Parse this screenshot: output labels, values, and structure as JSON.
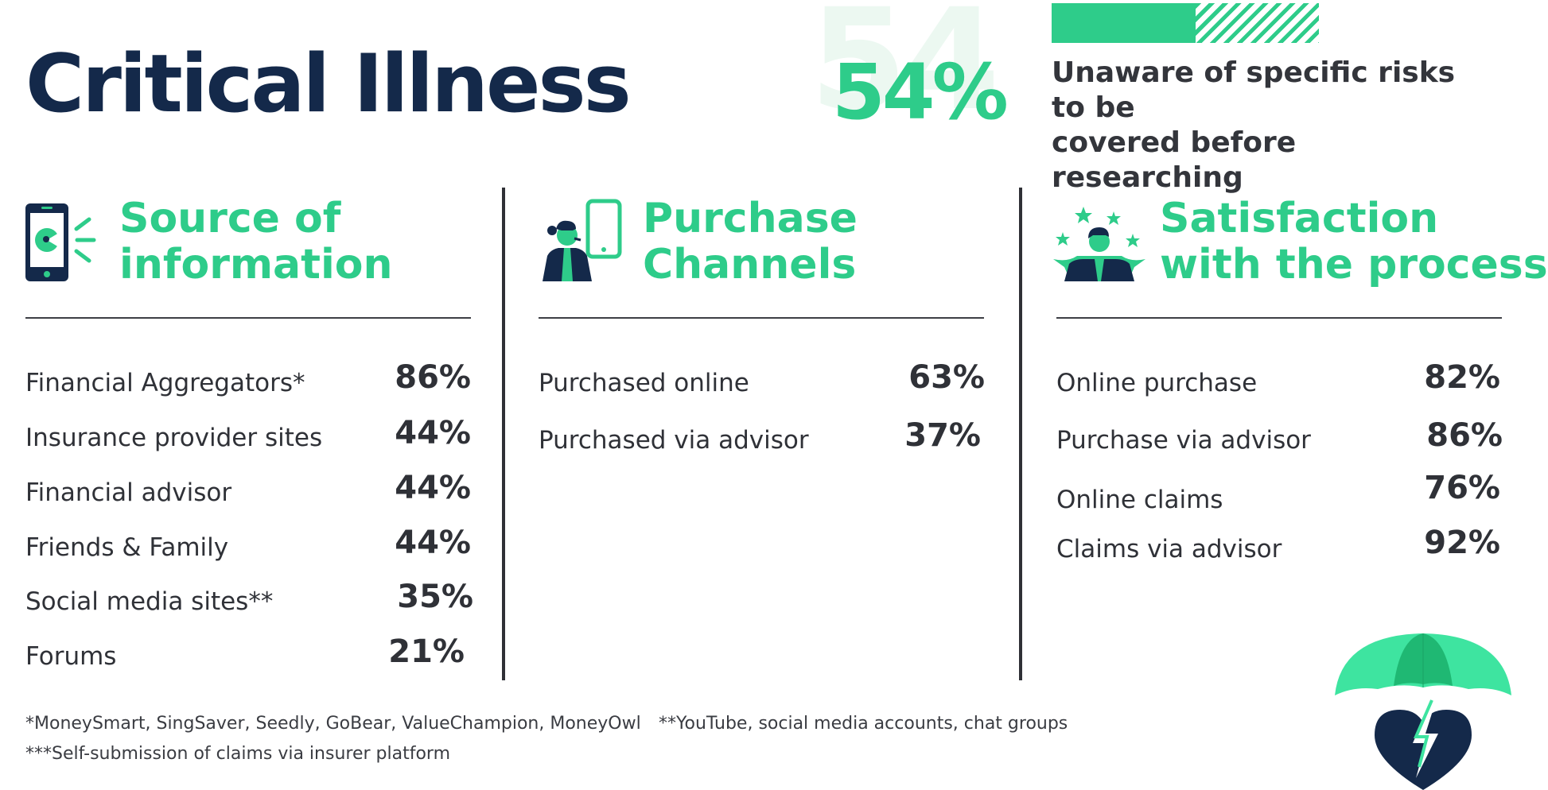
{
  "title": "Critical Illness",
  "highlight": {
    "background_number": "54",
    "value": "54%",
    "caption_line1": "Unaware of specific risks to be",
    "caption_line2": "covered before researching",
    "bar_fraction": 0.54
  },
  "columns": [
    {
      "icon": "phone-megaphone-icon",
      "heading_line1": "Source of",
      "heading_line2": "information",
      "rows": [
        {
          "label": "Financial Aggregators*",
          "value": "86%"
        },
        {
          "label": "Insurance provider sites",
          "value": "44%"
        },
        {
          "label": "Financial advisor",
          "value": "44%"
        },
        {
          "label": "Friends & Family",
          "value": "44%"
        },
        {
          "label": "Social media sites**",
          "value": "35%"
        },
        {
          "label": "Forums",
          "value": "21%"
        }
      ]
    },
    {
      "icon": "person-phone-icon",
      "heading_line1": "Purchase",
      "heading_line2": "Channels",
      "rows": [
        {
          "label": "Purchased online",
          "value": "63%"
        },
        {
          "label": "Purchased via advisor",
          "value": "37%"
        }
      ]
    },
    {
      "icon": "person-stars-icon",
      "heading_line1": "Satisfaction",
      "heading_line2": "with the process",
      "rows": [
        {
          "label": "Online purchase",
          "value": "82%"
        },
        {
          "label": "Purchase via advisor",
          "value": "86%"
        },
        {
          "label": "Online claims",
          "value": "76%"
        },
        {
          "label": "Claims via advisor",
          "value": "92%"
        }
      ]
    }
  ],
  "footnotes": {
    "aggregators": "*MoneySmart, SingSaver, Seedly, GoBear, ValueChampion, MoneyOwl",
    "social": "**YouTube, social media accounts, chat groups",
    "claims": "***Self-submission of claims via insurer platform"
  },
  "colors": {
    "accent": "#2ecc8a",
    "navy": "#14294a",
    "text": "#2f3137"
  },
  "decoration": "umbrella-heart-icon"
}
